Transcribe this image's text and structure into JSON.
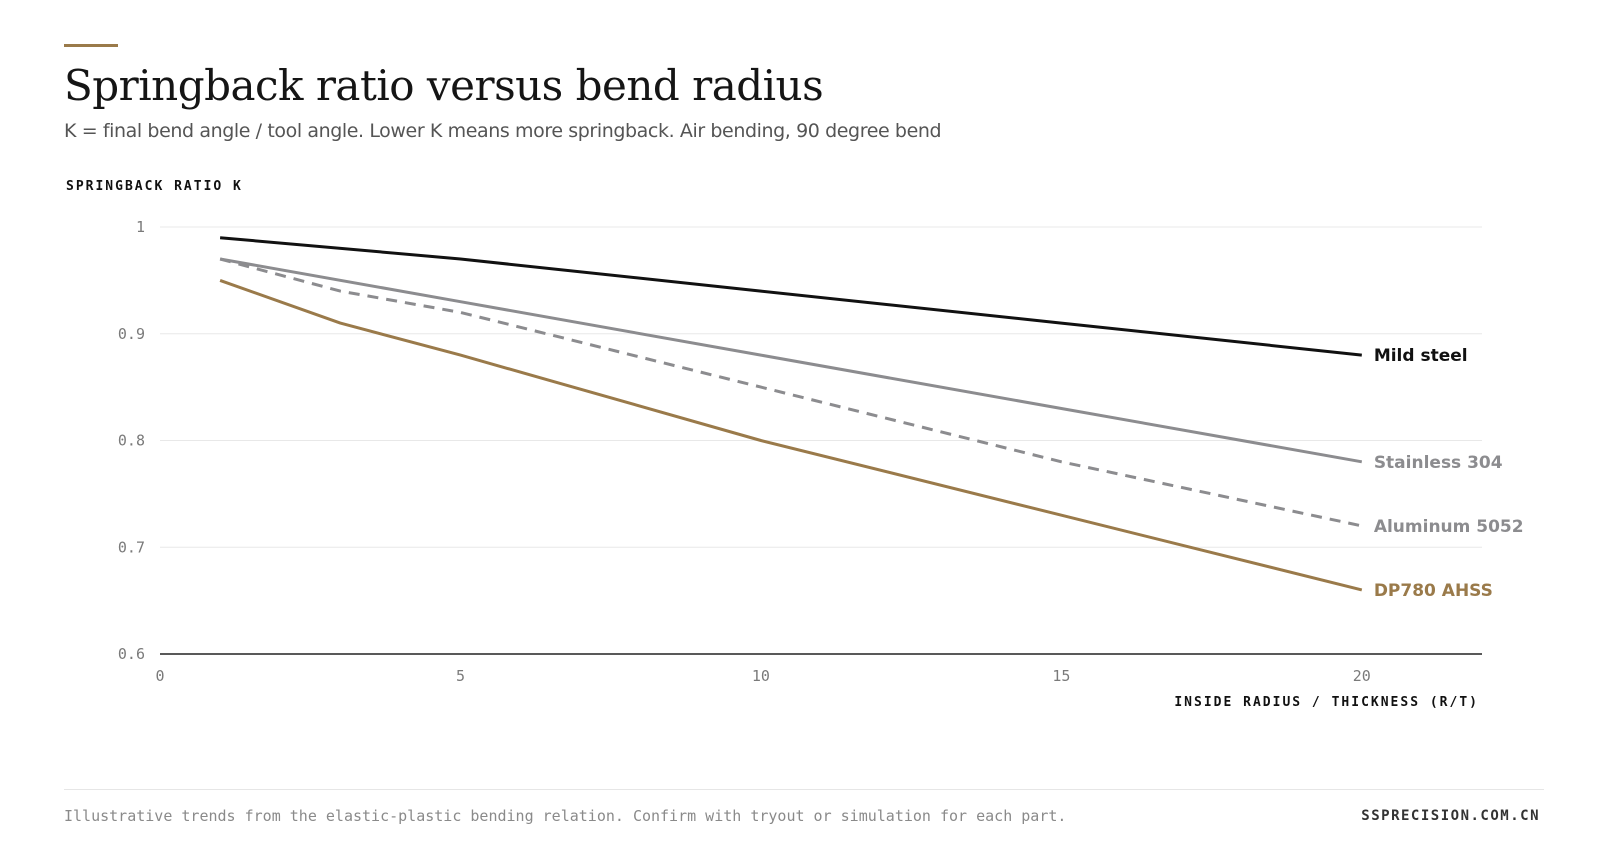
{
  "header": {
    "title": "Springback ratio versus bend radius",
    "subtitle": "K = final bend angle / tool angle. Lower K means more springback. Air bending, 90 degree bend"
  },
  "footer": {
    "note": "Illustrative trends from the elastic-plastic bending relation. Confirm with tryout or simulation for each part.",
    "source": "SSPRECISION.COM.CN"
  },
  "colors": {
    "accent": "#9a7a4a",
    "gridline": "#e8e8e8",
    "baseline": "#222222"
  },
  "chart_data": {
    "type": "line",
    "ylabel": "SPRINGBACK RATIO K",
    "xlabel": "INSIDE RADIUS / THICKNESS (R/T)",
    "xlim": [
      0,
      22
    ],
    "ylim": [
      0.6,
      1.0
    ],
    "x_ticks": [
      0,
      5,
      10,
      15,
      20
    ],
    "x_tick_labels": [
      "0",
      "5",
      "10",
      "15",
      "20"
    ],
    "y_ticks": [
      0.6,
      0.7,
      0.8,
      0.9,
      1.0
    ],
    "y_tick_labels": [
      "0.6",
      "0.7",
      "0.8",
      "0.9",
      "1"
    ],
    "grid": true,
    "legend": "direct labels at line ends",
    "series": [
      {
        "name": "Mild steel",
        "color": "#111111",
        "dash": "solid",
        "x": [
          1,
          5,
          10,
          15,
          20
        ],
        "y": [
          0.99,
          0.97,
          0.94,
          0.91,
          0.88
        ]
      },
      {
        "name": "Stainless 304",
        "color": "#8c8c8f",
        "dash": "solid",
        "x": [
          1,
          5,
          10,
          15,
          20
        ],
        "y": [
          0.97,
          0.93,
          0.88,
          0.83,
          0.78
        ]
      },
      {
        "name": "Aluminum 5052",
        "color": "#8c8c8f",
        "dash": "dashed",
        "x": [
          1,
          3,
          5,
          10,
          15,
          20
        ],
        "y": [
          0.97,
          0.94,
          0.92,
          0.85,
          0.78,
          0.72
        ]
      },
      {
        "name": "DP780 AHSS",
        "color": "#9a7a4a",
        "dash": "solid",
        "x": [
          1,
          3,
          5,
          10,
          15,
          20
        ],
        "y": [
          0.95,
          0.91,
          0.88,
          0.8,
          0.73,
          0.66
        ]
      }
    ]
  }
}
